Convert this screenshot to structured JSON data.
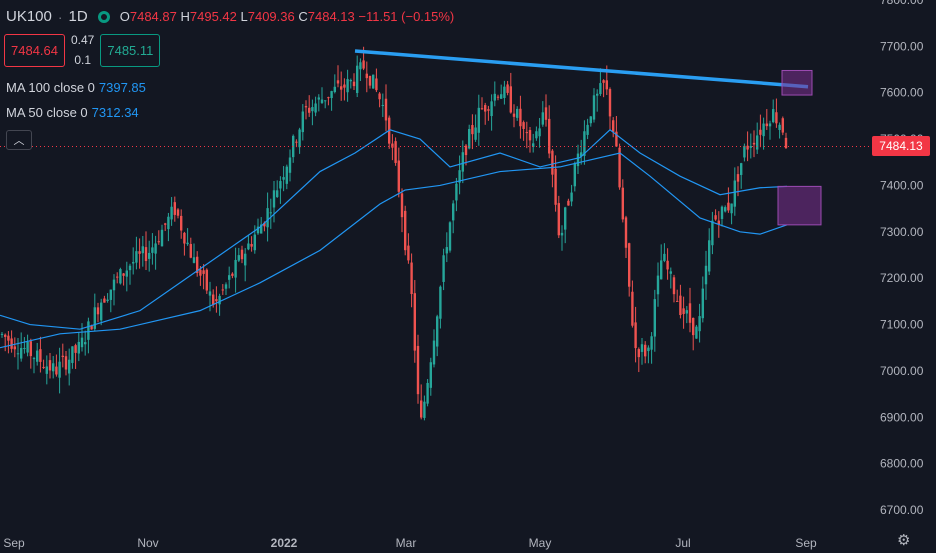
{
  "header": {
    "symbol": "UK100",
    "separator": "·",
    "timeframe": "1D",
    "ohlc": {
      "open_label": "O",
      "open": "7484.87",
      "high_label": "H",
      "high": "7495.42",
      "low_label": "L",
      "low": "7409.36",
      "close_label": "C",
      "close": "7484.13",
      "change": "−11.51 (−0.15%)"
    }
  },
  "quote": {
    "sell": "7484.64",
    "spread_top": "0.47",
    "spread_bottom": "0.1",
    "buy": "7485.11"
  },
  "indicators": [
    {
      "label": "MA 100 close 0",
      "value": "7397.85"
    },
    {
      "label": "MA 50 close 0",
      "value": "7312.34"
    }
  ],
  "collapse_icon": "chevron-up-icon",
  "current_price_tag": "7484.13",
  "settings_icon": "gear-icon",
  "colors": {
    "background": "#131722",
    "up": "#26a69a",
    "down": "#ef5350",
    "ma": "#2196f3",
    "trendline": "#2a9ef2",
    "box": "#7b2f8f",
    "price_line": "#f23645"
  },
  "chart_data": {
    "type": "candlestick",
    "y_ticks": [
      "6700.00",
      "6800.00",
      "6900.00",
      "7000.00",
      "7100.00",
      "7200.00",
      "7300.00",
      "7400.00",
      "7500.00",
      "7600.00",
      "7700.00",
      "7800.00"
    ],
    "ylim": [
      6700,
      7800
    ],
    "x_ticks": [
      "Sep",
      "Nov",
      "2022",
      "Mar",
      "May",
      "Jul",
      "Sep"
    ],
    "candles_approx": [
      {
        "t": "Sep",
        "open": 7050,
        "close": 7120
      },
      {
        "t": "Oct",
        "open": 7080,
        "close": 7000
      },
      {
        "t": "Oct-late",
        "open": 7170,
        "close": 7240
      },
      {
        "t": "Nov",
        "open": 7280,
        "close": 7350
      },
      {
        "t": "Nov-late",
        "open": 7100,
        "close": 7040
      },
      {
        "t": "Dec",
        "open": 7160,
        "close": 7260
      },
      {
        "t": "2022",
        "open": 7380,
        "close": 7460
      },
      {
        "t": "Jan-late",
        "open": 7500,
        "close": 7560
      },
      {
        "t": "Feb",
        "open": 7580,
        "close": 7650
      },
      {
        "t": "Feb-late",
        "open": 7550,
        "close": 7480
      },
      {
        "t": "Mar",
        "open": 6980,
        "close": 6900
      },
      {
        "t": "Mar-mid",
        "open": 7150,
        "close": 7300
      },
      {
        "t": "Apr",
        "open": 7500,
        "close": 7600
      },
      {
        "t": "May",
        "open": 7400,
        "close": 7380
      },
      {
        "t": "May-late",
        "open": 7540,
        "close": 7600
      },
      {
        "t": "Jun",
        "open": 7300,
        "close": 7200
      },
      {
        "t": "Jun-late",
        "open": 7050,
        "close": 7130
      },
      {
        "t": "Jul",
        "open": 7200,
        "close": 7150
      },
      {
        "t": "Jul-late",
        "open": 7350,
        "close": 7420
      },
      {
        "t": "Aug",
        "open": 7520,
        "close": 7550
      },
      {
        "t": "Aug-late",
        "open": 7495,
        "close": 7484
      }
    ],
    "ma100_approx": [
      {
        "t": "Sep",
        "v": 7060
      },
      {
        "t": "Nov",
        "v": 7100
      },
      {
        "t": "2022",
        "v": 7180
      },
      {
        "t": "Mar",
        "v": 7390
      },
      {
        "t": "May",
        "v": 7420
      },
      {
        "t": "Jul",
        "v": 7340
      },
      {
        "t": "Aug-late",
        "v": 7398
      }
    ],
    "ma50_approx": [
      {
        "t": "Sep",
        "v": 7110
      },
      {
        "t": "Nov",
        "v": 7130
      },
      {
        "t": "2022",
        "v": 7280
      },
      {
        "t": "Mar",
        "v": 7480
      },
      {
        "t": "May",
        "v": 7460
      },
      {
        "t": "Jun",
        "v": 7510
      },
      {
        "t": "Jul",
        "v": 7330
      },
      {
        "t": "Aug-late",
        "v": 7312
      }
    ],
    "trendline": [
      {
        "t": "Feb",
        "v": 7690
      },
      {
        "t": "Aug-late",
        "v": 7610
      }
    ],
    "current_price": 7484.13
  }
}
